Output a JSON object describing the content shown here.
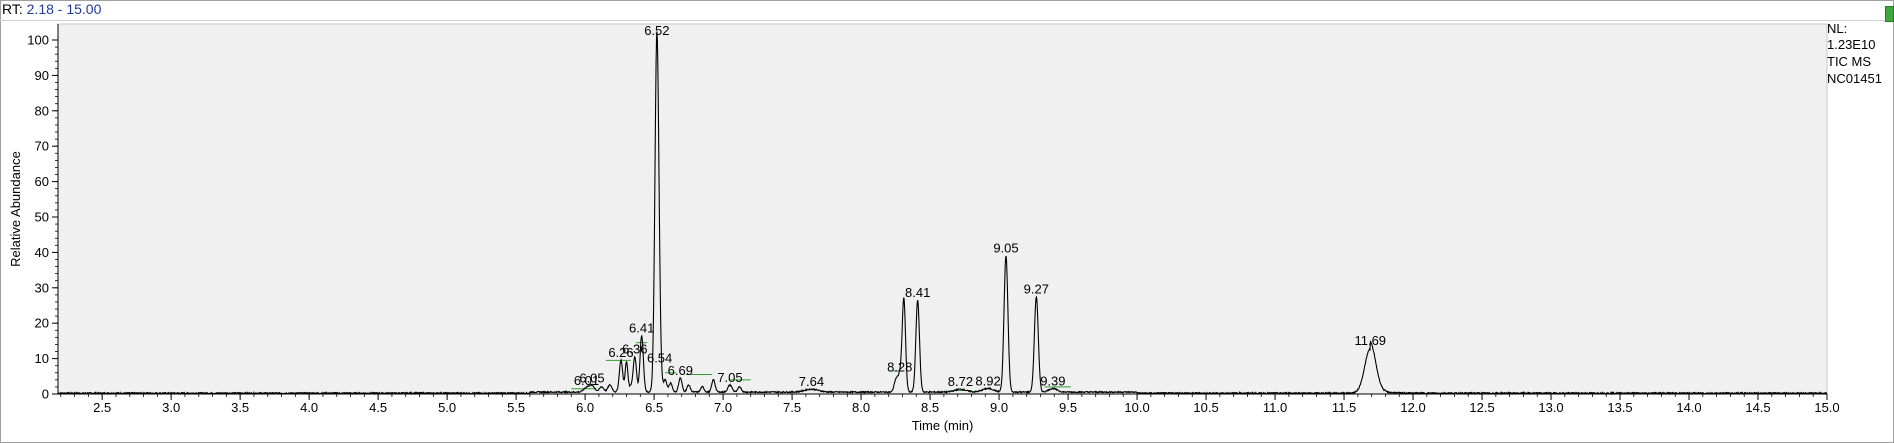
{
  "header": {
    "rt_label": "RT:",
    "rt_range": "2.18 - 15.00"
  },
  "info": {
    "nl_label": "NL:",
    "nl_value": "1.23E10",
    "scan_type": "TIC  MS",
    "sample": "NC01451"
  },
  "colors": {
    "trace": "#000000",
    "baseline": "#2ea02e",
    "plot_bg": "#f0f0f0",
    "range_value": "#1f3b9b"
  },
  "chart_data": {
    "type": "line",
    "xlabel": "Time (min)",
    "ylabel": "Relative Abundance",
    "xlim": [
      2.18,
      15.0
    ],
    "ylim": [
      0,
      100
    ],
    "x_ticks": [
      "2.5",
      "3.0",
      "3.5",
      "4.0",
      "4.5",
      "5.0",
      "5.5",
      "6.0",
      "6.5",
      "7.0",
      "7.5",
      "8.0",
      "8.5",
      "9.0",
      "9.5",
      "10.0",
      "10.5",
      "11.0",
      "11.5",
      "12.0",
      "12.5",
      "13.0",
      "13.5",
      "14.0",
      "14.5",
      "15.0"
    ],
    "y_ticks": [
      "0",
      "10",
      "20",
      "30",
      "40",
      "50",
      "60",
      "70",
      "80",
      "90",
      "100"
    ],
    "grid": false,
    "peaks": [
      {
        "label": "6.01",
        "rt": 6.01,
        "height": 1.2,
        "width": 0.02
      },
      {
        "label": "6.05",
        "rt": 6.05,
        "height": 1.8,
        "width": 0.02
      },
      {
        "label": "6.26",
        "rt": 6.26,
        "height": 9.0,
        "width": 0.012
      },
      {
        "label": "6.36",
        "rt": 6.36,
        "height": 10.0,
        "width": 0.012
      },
      {
        "label": "6.41",
        "rt": 6.41,
        "height": 16.0,
        "width": 0.012
      },
      {
        "label": "6.52",
        "rt": 6.52,
        "height": 100.0,
        "width": 0.014
      },
      {
        "label": "6.54",
        "rt": 6.54,
        "height": 7.5,
        "width": 0.012
      },
      {
        "label": "6.69",
        "rt": 6.69,
        "height": 4.0,
        "width": 0.012
      },
      {
        "label": "7.05",
        "rt": 7.05,
        "height": 2.0,
        "width": 0.015
      },
      {
        "label": "7.64",
        "rt": 7.64,
        "height": 0.8,
        "width": 0.05
      },
      {
        "label": "8.28",
        "rt": 8.28,
        "height": 5.0,
        "width": 0.015
      },
      {
        "label": "8.41",
        "rt": 8.41,
        "height": 26.0,
        "width": 0.013
      },
      {
        "label": "8.72",
        "rt": 8.72,
        "height": 0.8,
        "width": 0.04
      },
      {
        "label": "8.92",
        "rt": 8.92,
        "height": 1.0,
        "width": 0.04
      },
      {
        "label": "9.05",
        "rt": 9.05,
        "height": 38.5,
        "width": 0.014
      },
      {
        "label": "9.27",
        "rt": 9.27,
        "height": 27.0,
        "width": 0.014
      },
      {
        "label": "9.39",
        "rt": 9.39,
        "height": 1.0,
        "width": 0.03
      },
      {
        "label": "11.69",
        "rt": 11.69,
        "height": 12.5,
        "width": 0.04
      }
    ],
    "unlabeled_peaks": [
      {
        "rt": 6.3,
        "height": 8.5,
        "width": 0.01
      },
      {
        "rt": 6.33,
        "height": 1.5,
        "width": 0.01
      },
      {
        "rt": 8.31,
        "height": 26.0,
        "width": 0.012
      },
      {
        "rt": 8.25,
        "height": 3.0,
        "width": 0.012
      },
      {
        "rt": 6.58,
        "height": 3.5,
        "width": 0.012
      },
      {
        "rt": 6.62,
        "height": 2.5,
        "width": 0.012
      },
      {
        "rt": 6.75,
        "height": 2.0,
        "width": 0.012
      },
      {
        "rt": 6.85,
        "height": 1.5,
        "width": 0.012
      },
      {
        "rt": 6.93,
        "height": 3.5,
        "width": 0.012
      },
      {
        "rt": 7.12,
        "height": 1.5,
        "width": 0.012
      },
      {
        "rt": 6.12,
        "height": 1.5,
        "width": 0.015
      },
      {
        "rt": 6.18,
        "height": 2.0,
        "width": 0.015
      }
    ],
    "baselines": [
      {
        "x1": 5.9,
        "y1": 1.5,
        "x2": 6.08,
        "y2": 1.5
      },
      {
        "x1": 6.15,
        "y1": 9.5,
        "x2": 6.33,
        "y2": 9.5
      },
      {
        "x1": 6.37,
        "y1": 14.5,
        "x2": 6.45,
        "y2": 14.5
      },
      {
        "x1": 6.58,
        "y1": 6.0,
        "x2": 6.66,
        "y2": 6.0
      },
      {
        "x1": 6.73,
        "y1": 5.5,
        "x2": 6.92,
        "y2": 5.5
      },
      {
        "x1": 7.04,
        "y1": 4.0,
        "x2": 7.2,
        "y2": 4.0
      },
      {
        "x1": 8.2,
        "y1": 6.5,
        "x2": 8.3,
        "y2": 6.5
      },
      {
        "x1": 8.65,
        "y1": 1.0,
        "x2": 8.8,
        "y2": 1.0
      },
      {
        "x1": 9.33,
        "y1": 2.0,
        "x2": 9.52,
        "y2": 2.0
      }
    ]
  }
}
